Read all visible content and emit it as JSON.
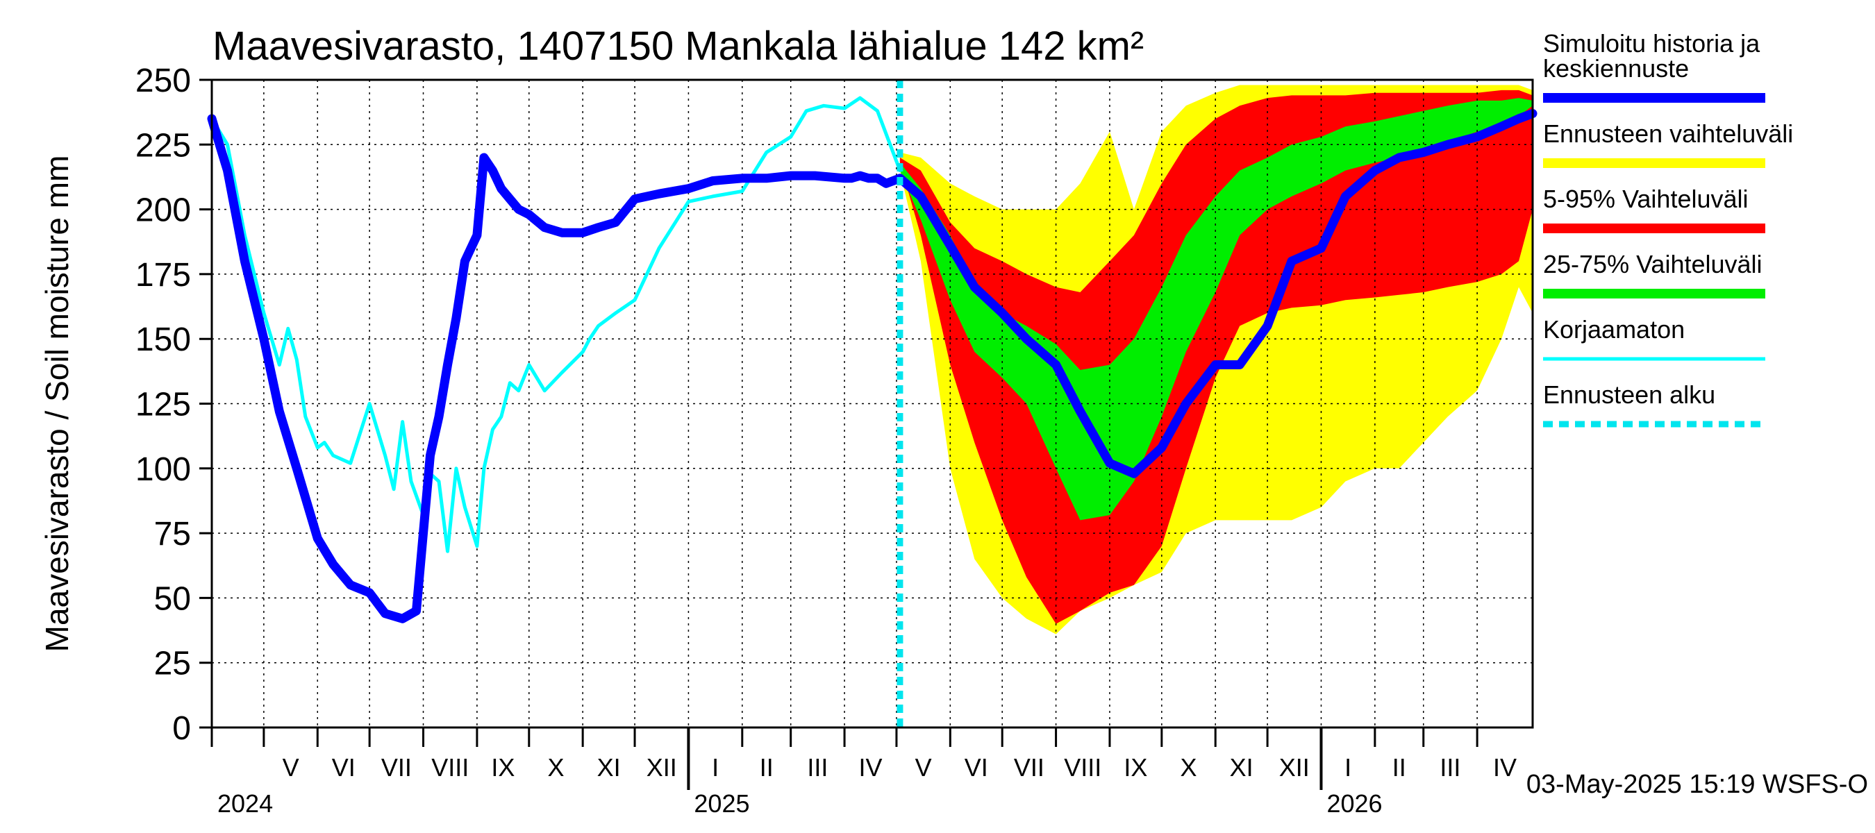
{
  "chart_data": {
    "type": "area",
    "title": "Maavesivarasto, 1407150 Mankala lähialue 142 km²",
    "ylabel": "Maavesivarasto / Soil moisture   mm",
    "footer": "03-May-2025 15:19 WSFS-O",
    "ylim": [
      0,
      250
    ],
    "yticks": [
      0,
      25,
      50,
      75,
      100,
      125,
      150,
      175,
      200,
      225,
      250
    ],
    "x_range": [
      "2024-04-01",
      "2026-05-03"
    ],
    "forecast_start": "2025-05-03",
    "grid": true,
    "legend_position": "right",
    "month_labels": [
      {
        "label": "V",
        "date": "2024-05-01"
      },
      {
        "label": "VI",
        "date": "2024-06-01"
      },
      {
        "label": "VII",
        "date": "2024-07-01"
      },
      {
        "label": "VIII",
        "date": "2024-08-01"
      },
      {
        "label": "IX",
        "date": "2024-09-01"
      },
      {
        "label": "X",
        "date": "2024-10-01"
      },
      {
        "label": "XI",
        "date": "2024-11-01"
      },
      {
        "label": "XII",
        "date": "2024-12-01"
      },
      {
        "label": "I",
        "date": "2025-01-01"
      },
      {
        "label": "II",
        "date": "2025-02-01"
      },
      {
        "label": "III",
        "date": "2025-03-01"
      },
      {
        "label": "IV",
        "date": "2025-04-01"
      },
      {
        "label": "V",
        "date": "2025-05-01"
      },
      {
        "label": "VI",
        "date": "2025-06-01"
      },
      {
        "label": "VII",
        "date": "2025-07-01"
      },
      {
        "label": "VIII",
        "date": "2025-08-01"
      },
      {
        "label": "IX",
        "date": "2025-09-01"
      },
      {
        "label": "X",
        "date": "2025-10-01"
      },
      {
        "label": "XI",
        "date": "2025-11-01"
      },
      {
        "label": "XII",
        "date": "2025-12-01"
      },
      {
        "label": "I",
        "date": "2026-01-01"
      },
      {
        "label": "II",
        "date": "2026-02-01"
      },
      {
        "label": "III",
        "date": "2026-03-01"
      },
      {
        "label": "IV",
        "date": "2026-04-01"
      }
    ],
    "year_labels": [
      {
        "label": "2024",
        "date": "2024-04-01"
      },
      {
        "label": "2025",
        "date": "2025-01-01"
      },
      {
        "label": "2026",
        "date": "2026-01-01"
      }
    ],
    "legend": [
      {
        "label": "Simuloitu historia ja keskiennuste",
        "lines": [
          "Simuloitu historia ja",
          "keskiennuste"
        ],
        "color": "#0000ff",
        "style": "thick"
      },
      {
        "label": "Ennusteen vaihteluväli",
        "lines": [
          "Ennusteen vaihteluväli"
        ],
        "color": "#ffff00",
        "style": "thick"
      },
      {
        "label": "5-95% Vaihteluväli",
        "lines": [
          "5-95% Vaihteluväli"
        ],
        "color": "#ff0000",
        "style": "thick"
      },
      {
        "label": "25-75% Vaihteluväli",
        "lines": [
          "25-75% Vaihteluväli"
        ],
        "color": "#00ee00",
        "style": "thick"
      },
      {
        "label": "Korjaamaton",
        "lines": [
          "Korjaamaton"
        ],
        "color": "#00ffff",
        "style": "thin"
      },
      {
        "label": "Ennusteen alku",
        "lines": [
          "Ennusteen alku"
        ],
        "color": "#00e5ee",
        "style": "dashed"
      }
    ],
    "series": [
      {
        "name": "Simuloitu historia ja keskiennuste",
        "color": "#0000ff",
        "x": [
          "2024-04-01",
          "2024-04-05",
          "2024-04-10",
          "2024-04-20",
          "2024-05-01",
          "2024-05-10",
          "2024-05-20",
          "2024-06-01",
          "2024-06-10",
          "2024-06-20",
          "2024-07-01",
          "2024-07-10",
          "2024-07-20",
          "2024-07-28",
          "2024-08-05",
          "2024-08-10",
          "2024-08-15",
          "2024-08-20",
          "2024-08-25",
          "2024-09-01",
          "2024-09-05",
          "2024-09-10",
          "2024-09-15",
          "2024-09-20",
          "2024-09-25",
          "2024-10-01",
          "2024-10-10",
          "2024-10-20",
          "2024-11-01",
          "2024-11-10",
          "2024-11-20",
          "2024-12-01",
          "2024-12-15",
          "2025-01-01",
          "2025-01-15",
          "2025-02-01",
          "2025-02-15",
          "2025-03-01",
          "2025-03-15",
          "2025-04-01",
          "2025-04-05",
          "2025-04-10",
          "2025-04-15",
          "2025-04-20",
          "2025-04-25",
          "2025-05-03",
          "2025-05-15",
          "2025-06-01",
          "2025-06-15",
          "2025-07-01",
          "2025-07-15",
          "2025-08-01",
          "2025-08-15",
          "2025-09-01",
          "2025-09-15",
          "2025-10-01",
          "2025-10-15",
          "2025-11-01",
          "2025-11-15",
          "2025-12-01",
          "2025-12-15",
          "2026-01-01",
          "2026-01-15",
          "2026-02-01",
          "2026-02-15",
          "2026-03-01",
          "2026-03-15",
          "2026-04-01",
          "2026-04-15",
          "2026-04-25",
          "2026-05-03"
        ],
        "y": [
          235,
          226,
          215,
          180,
          150,
          122,
          100,
          73,
          63,
          55,
          52,
          44,
          42,
          45,
          105,
          120,
          140,
          158,
          180,
          190,
          220,
          215,
          208,
          204,
          200,
          198,
          193,
          191,
          191,
          193,
          195,
          204,
          206,
          208,
          211,
          212,
          212,
          213,
          213,
          212,
          212,
          213,
          212,
          212,
          210,
          212,
          205,
          186,
          170,
          160,
          150,
          140,
          122,
          102,
          98,
          108,
          125,
          140,
          140,
          155,
          180,
          185,
          205,
          215,
          220,
          222,
          225,
          228,
          232,
          235,
          237
        ]
      },
      {
        "name": "Korjaamaton",
        "color": "#00ffff",
        "x": [
          "2024-04-01",
          "2024-04-10",
          "2024-04-20",
          "2024-05-01",
          "2024-05-10",
          "2024-05-15",
          "2024-05-20",
          "2024-05-25",
          "2024-06-01",
          "2024-06-05",
          "2024-06-10",
          "2024-06-20",
          "2024-07-01",
          "2024-07-10",
          "2024-07-15",
          "2024-07-20",
          "2024-07-25",
          "2024-08-01",
          "2024-08-05",
          "2024-08-10",
          "2024-08-15",
          "2024-08-20",
          "2024-08-25",
          "2024-09-01",
          "2024-09-05",
          "2024-09-10",
          "2024-09-15",
          "2024-09-20",
          "2024-09-25",
          "2024-10-01",
          "2024-10-10",
          "2024-10-20",
          "2024-11-01",
          "2024-11-05",
          "2024-11-10",
          "2024-11-20",
          "2024-12-01",
          "2024-12-15",
          "2025-01-01",
          "2025-01-15",
          "2025-02-01",
          "2025-02-15",
          "2025-03-01",
          "2025-03-10",
          "2025-03-20",
          "2025-04-01",
          "2025-04-10",
          "2025-04-20",
          "2025-05-03"
        ],
        "y": [
          235,
          225,
          190,
          160,
          140,
          154,
          142,
          120,
          108,
          110,
          105,
          102,
          125,
          105,
          92,
          118,
          95,
          82,
          98,
          95,
          68,
          100,
          85,
          70,
          100,
          115,
          120,
          133,
          130,
          140,
          130,
          137,
          145,
          150,
          155,
          160,
          165,
          185,
          203,
          205,
          207,
          222,
          228,
          238,
          240,
          239,
          243,
          238,
          215
        ]
      }
    ],
    "bands": [
      {
        "name": "Ennusteen vaihteluväli",
        "color": "#ffff00",
        "x": [
          "2025-05-03",
          "2025-05-15",
          "2025-06-01",
          "2025-06-15",
          "2025-07-01",
          "2025-07-15",
          "2025-08-01",
          "2025-08-15",
          "2025-09-01",
          "2025-09-15",
          "2025-10-01",
          "2025-10-15",
          "2025-11-01",
          "2025-11-15",
          "2025-12-01",
          "2025-12-15",
          "2026-01-01",
          "2026-01-15",
          "2026-02-01",
          "2026-02-15",
          "2026-03-01",
          "2026-03-15",
          "2026-04-01",
          "2026-04-15",
          "2026-04-25",
          "2026-05-03"
        ],
        "low": [
          215,
          180,
          100,
          65,
          50,
          42,
          36,
          45,
          50,
          55,
          60,
          75,
          80,
          80,
          80,
          80,
          85,
          95,
          100,
          100,
          110,
          120,
          130,
          150,
          170,
          160
        ],
        "high": [
          222,
          220,
          210,
          205,
          200,
          200,
          200,
          210,
          230,
          200,
          230,
          240,
          245,
          248,
          248,
          248,
          248,
          248,
          248,
          248,
          248,
          248,
          248,
          248,
          248,
          246
        ]
      },
      {
        "name": "5-95% Vaihteluväli",
        "color": "#ff0000",
        "x": [
          "2025-05-03",
          "2025-05-15",
          "2025-06-01",
          "2025-06-15",
          "2025-07-01",
          "2025-07-15",
          "2025-08-01",
          "2025-08-15",
          "2025-09-01",
          "2025-09-15",
          "2025-10-01",
          "2025-10-15",
          "2025-11-01",
          "2025-11-15",
          "2025-12-01",
          "2025-12-15",
          "2026-01-01",
          "2026-01-15",
          "2026-02-01",
          "2026-02-15",
          "2026-03-01",
          "2026-03-15",
          "2026-04-01",
          "2026-04-15",
          "2026-04-25",
          "2026-05-03"
        ],
        "low": [
          218,
          190,
          140,
          110,
          80,
          58,
          40,
          45,
          52,
          55,
          70,
          100,
          135,
          155,
          160,
          162,
          163,
          165,
          166,
          167,
          168,
          170,
          172,
          175,
          180,
          200
        ],
        "high": [
          220,
          215,
          195,
          185,
          180,
          175,
          170,
          168,
          180,
          190,
          210,
          225,
          235,
          240,
          243,
          244,
          244,
          244,
          245,
          245,
          245,
          245,
          245,
          246,
          246,
          244
        ]
      },
      {
        "name": "25-75% Vaihteluväli",
        "color": "#00ee00",
        "x": [
          "2025-05-03",
          "2025-05-15",
          "2025-06-01",
          "2025-06-15",
          "2025-07-01",
          "2025-07-15",
          "2025-08-01",
          "2025-08-15",
          "2025-09-01",
          "2025-09-15",
          "2025-10-01",
          "2025-10-15",
          "2025-11-01",
          "2025-11-15",
          "2025-12-01",
          "2025-12-15",
          "2026-01-01",
          "2026-01-15",
          "2026-02-01",
          "2026-02-15",
          "2026-03-01",
          "2026-03-15",
          "2026-04-01",
          "2026-04-15",
          "2026-04-25",
          "2026-05-03"
        ],
        "low": [
          215,
          196,
          165,
          145,
          135,
          125,
          100,
          80,
          82,
          95,
          120,
          145,
          168,
          190,
          200,
          205,
          210,
          215,
          218,
          220,
          223,
          226,
          230,
          232,
          236,
          240
        ],
        "high": [
          218,
          208,
          190,
          170,
          160,
          155,
          148,
          138,
          140,
          150,
          170,
          190,
          205,
          215,
          220,
          225,
          228,
          232,
          234,
          236,
          238,
          240,
          242,
          242,
          243,
          242
        ]
      }
    ]
  }
}
